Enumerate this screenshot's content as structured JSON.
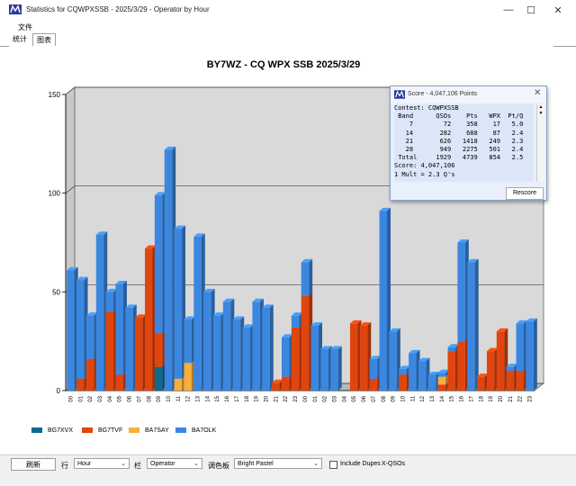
{
  "window": {
    "title": "Statistics for CQWPXSSB - 2025/3/29 - Operator by Hour",
    "minimize": "—",
    "maximize": "☐",
    "close": "✕"
  },
  "menu": {
    "file": "文件"
  },
  "tabs": [
    {
      "label": "统计"
    },
    {
      "label": "图表"
    }
  ],
  "colors": {
    "BG7XVX": "#0e6a8c",
    "BG7TVF": "#e0450e",
    "BA7SAY": "#f6ae3c",
    "BA7OLK": "#3b87e0"
  },
  "chart_data": {
    "type": "bar",
    "stacked": true,
    "title": "BY7WZ - CQ WPX SSB 2025/3/29",
    "ylim": [
      0,
      150
    ],
    "yticks": [
      "0",
      "50",
      "100",
      "150"
    ],
    "grid": true,
    "legend_position": "bottom-left",
    "categories": [
      "00",
      "01",
      "02",
      "03",
      "04",
      "05",
      "06",
      "07",
      "08",
      "09",
      "10",
      "11",
      "12",
      "13",
      "14",
      "15",
      "16",
      "17",
      "18",
      "19",
      "20",
      "21",
      "22",
      "23",
      "00",
      "01",
      "02",
      "03",
      "04",
      "05",
      "06",
      "07",
      "08",
      "09",
      "10",
      "11",
      "12",
      "13",
      "14",
      "15",
      "16",
      "17",
      "18",
      "19",
      "20",
      "21",
      "22",
      "23"
    ],
    "series": [
      {
        "name": "BG7XVX",
        "values": [
          0,
          0,
          0,
          0,
          0,
          0,
          0,
          0,
          0,
          12,
          0,
          0,
          0,
          0,
          0,
          0,
          0,
          0,
          0,
          0,
          0,
          0,
          0,
          0,
          0,
          0,
          0,
          0,
          0,
          0,
          0,
          0,
          0,
          0,
          0,
          0,
          0,
          0,
          0,
          0,
          0,
          0,
          0,
          0,
          0,
          0,
          0,
          0
        ]
      },
      {
        "name": "BG7TVF",
        "values": [
          0,
          6,
          16,
          0,
          40,
          8,
          0,
          37,
          72,
          17,
          0,
          0,
          0,
          0,
          0,
          0,
          0,
          0,
          0,
          0,
          0,
          4,
          7,
          32,
          48,
          0,
          0,
          0,
          0,
          34,
          33,
          6,
          0,
          0,
          8,
          0,
          0,
          0,
          3,
          20,
          25,
          0,
          7,
          20,
          30,
          10,
          10,
          0
        ]
      },
      {
        "name": "BA7SAY",
        "values": [
          0,
          0,
          0,
          0,
          0,
          0,
          0,
          0,
          0,
          0,
          0,
          6,
          14,
          0,
          0,
          0,
          0,
          0,
          0,
          0,
          0,
          0,
          0,
          0,
          0,
          0,
          0,
          0,
          0,
          0,
          0,
          0,
          0,
          0,
          0,
          0,
          0,
          0,
          4,
          0,
          0,
          0,
          0,
          0,
          0,
          0,
          0,
          0
        ]
      },
      {
        "name": "BA7OLK",
        "values": [
          61,
          50,
          22,
          79,
          10,
          46,
          42,
          0,
          0,
          70,
          122,
          76,
          22,
          78,
          50,
          38,
          45,
          36,
          32,
          45,
          42,
          0,
          20,
          6,
          17,
          33,
          21,
          21,
          0,
          0,
          0,
          10,
          91,
          30,
          3,
          19,
          15,
          8,
          2,
          2,
          50,
          65,
          0,
          0,
          0,
          2,
          24,
          35
        ]
      }
    ]
  },
  "score_window": {
    "title": "Score - 4,047,106 Points",
    "lines": [
      "Contest: CQWPXSSB",
      " Band      QSOs    Pts   WPX  Pt/Q",
      "    7        72    358    17   5.0",
      "   14       282    688    87   2.4",
      "   21       626   1418   249   2.3",
      "   28       949   2275   501   2.4",
      " Total     1929   4739   854   2.5",
      "Score: 4,047,106",
      "1 Mult = 2.3 Q's"
    ],
    "rescore": "Rescore"
  },
  "controls": {
    "refresh": "刷新",
    "row_label": "行",
    "row_value": "Hour",
    "col_label": "栏",
    "col_value": "Operator",
    "palette_label": "调色板",
    "palette_value": "Bright Pastel",
    "include_dupes": "Include Dupes",
    "xqsos": "X-QSOs"
  }
}
